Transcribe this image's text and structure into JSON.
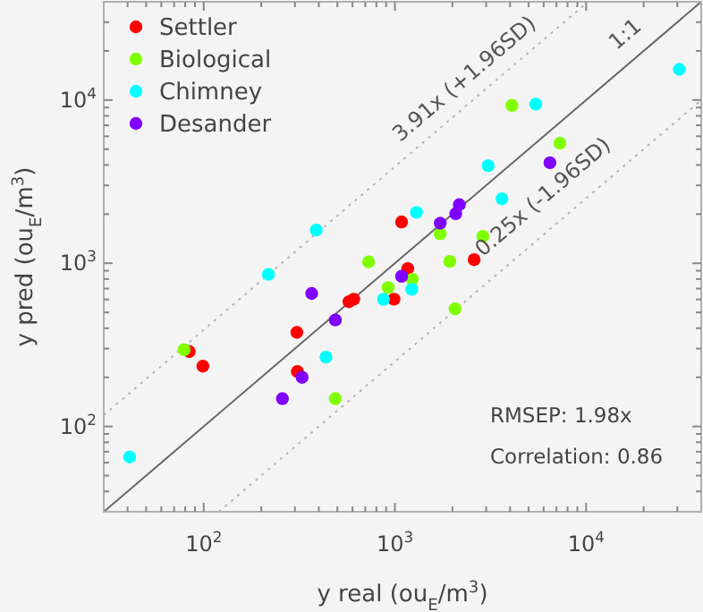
{
  "chart_data": {
    "type": "scatter",
    "xlabel": "y real (ou$_{E}$/m$^{3}$)",
    "ylabel": "y pred (ou$_{E}$/m$^{3}$)",
    "log": "xy",
    "xlim": [
      30,
      40000
    ],
    "ylim": [
      30,
      40000
    ],
    "xticks": [
      {
        "value": 40,
        "label": null
      },
      {
        "value": 50,
        "label": null
      },
      {
        "value": 60,
        "label": null
      },
      {
        "value": 70,
        "label": null
      },
      {
        "value": 80,
        "label": null
      },
      {
        "value": 90,
        "label": null
      },
      {
        "value": 100,
        "label": "10$^{2}$"
      },
      {
        "value": 200,
        "label": null
      },
      {
        "value": 300,
        "label": null
      },
      {
        "value": 400,
        "label": null
      },
      {
        "value": 500,
        "label": null
      },
      {
        "value": 600,
        "label": null
      },
      {
        "value": 700,
        "label": null
      },
      {
        "value": 800,
        "label": null
      },
      {
        "value": 900,
        "label": null
      },
      {
        "value": 1000,
        "label": "10$^{3}$"
      },
      {
        "value": 2000,
        "label": null
      },
      {
        "value": 3000,
        "label": null
      },
      {
        "value": 4000,
        "label": null
      },
      {
        "value": 5000,
        "label": null
      },
      {
        "value": 6000,
        "label": null
      },
      {
        "value": 7000,
        "label": null
      },
      {
        "value": 8000,
        "label": null
      },
      {
        "value": 9000,
        "label": null
      },
      {
        "value": 10000,
        "label": "10$^{4}$"
      },
      {
        "value": 20000,
        "label": null
      },
      {
        "value": 30000,
        "label": null
      }
    ],
    "yticks": [
      {
        "value": 40,
        "label": null
      },
      {
        "value": 50,
        "label": null
      },
      {
        "value": 60,
        "label": null
      },
      {
        "value": 70,
        "label": null
      },
      {
        "value": 80,
        "label": null
      },
      {
        "value": 90,
        "label": null
      },
      {
        "value": 100,
        "label": "10$^{2}$"
      },
      {
        "value": 200,
        "label": null
      },
      {
        "value": 300,
        "label": null
      },
      {
        "value": 400,
        "label": null
      },
      {
        "value": 500,
        "label": null
      },
      {
        "value": 600,
        "label": null
      },
      {
        "value": 700,
        "label": null
      },
      {
        "value": 800,
        "label": null
      },
      {
        "value": 900,
        "label": null
      },
      {
        "value": 1000,
        "label": "10$^{3}$"
      },
      {
        "value": 2000,
        "label": null
      },
      {
        "value": 3000,
        "label": null
      },
      {
        "value": 4000,
        "label": null
      },
      {
        "value": 5000,
        "label": null
      },
      {
        "value": 6000,
        "label": null
      },
      {
        "value": 7000,
        "label": null
      },
      {
        "value": 8000,
        "label": null
      },
      {
        "value": 9000,
        "label": null
      },
      {
        "value": 10000,
        "label": "10$^{4}$"
      },
      {
        "value": 20000,
        "label": null
      },
      {
        "value": 30000,
        "label": null
      }
    ],
    "grid": false,
    "legend": "top left",
    "marker": "circle",
    "series": [
      {
        "type": "line",
        "color": "#666666",
        "line_style": "solid",
        "marker": "none",
        "x": [
          30,
          40000
        ],
        "values": [
          30,
          40000
        ]
      },
      {
        "type": "line",
        "color": "#b4b4b4",
        "line_style": "dotted",
        "marker": "none",
        "x": [
          30,
          10230
        ],
        "values": [
          117.3,
          40000
        ]
      },
      {
        "type": "line",
        "color": "#b4b4b4",
        "line_style": "dotted",
        "marker": "none",
        "x": [
          120,
          40000
        ],
        "values": [
          30,
          10000
        ]
      },
      {
        "name": "Settler",
        "color": "#ff0000",
        "x": [
          84,
          99,
          307,
          309,
          575,
          609,
          989,
          1084,
          1167,
          2596
        ],
        "values": [
          288,
          234,
          377,
          217,
          581,
          602,
          602,
          1791,
          927,
          1052
        ]
      },
      {
        "name": "Biological",
        "color": "#80ff00",
        "x": [
          79,
          488,
          728,
          922,
          1233,
          1726,
          1936,
          2063,
          2884,
          4093,
          7295
        ],
        "values": [
          295,
          148,
          1019,
          710,
          798,
          1515,
          1026,
          525,
          1462,
          9270,
          5445
        ]
      },
      {
        "name": "Chimney",
        "color": "#00ffff",
        "x": [
          41,
          218,
          388,
          436,
          871,
          1225,
          1297,
          3076,
          3630,
          5458,
          30700
        ],
        "values": [
          65,
          855,
          1597,
          266,
          601,
          692,
          2050,
          3963,
          2484,
          9440,
          15420
        ]
      },
      {
        "name": "Desander",
        "color": "#8000ff",
        "x": [
          258,
          327,
          367,
          488,
          1084,
          1726,
          2080,
          2172,
          6470
        ],
        "values": [
          148,
          200,
          653,
          449,
          832,
          1758,
          2013,
          2286,
          4130
        ]
      }
    ],
    "annotations": [
      "1:1",
      "3.91x (+1.96SD)",
      "0.25x (-1.96SD)",
      "RMSEP: 1.98x",
      "Correlation: 0.86"
    ]
  }
}
